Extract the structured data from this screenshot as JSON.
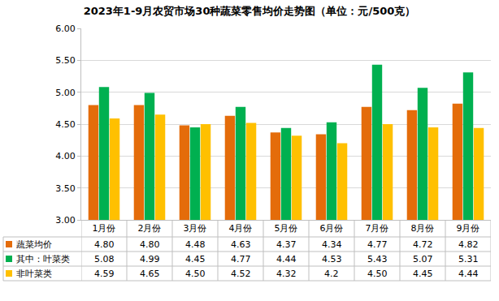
{
  "chart_data": {
    "type": "bar",
    "title": "2023年1-9月农贸市场30种蔬菜零售均价走势图（单位：元/500克）",
    "categories": [
      "1月份",
      "2月份",
      "3月份",
      "4月份",
      "5月份",
      "6月份",
      "7月份",
      "8月份",
      "9月份"
    ],
    "series": [
      {
        "name": "蔬菜均价",
        "color": "#E46C0A",
        "values": [
          4.8,
          4.8,
          4.48,
          4.63,
          4.37,
          4.34,
          4.77,
          4.72,
          4.82
        ],
        "value_labels": [
          "4.80",
          "4.80",
          "4.48",
          "4.63",
          "4.37",
          "4.34",
          "4.77",
          "4.72",
          "4.82"
        ]
      },
      {
        "name": "其中：叶菜类",
        "color": "#00B050",
        "values": [
          5.08,
          4.99,
          4.45,
          4.77,
          4.44,
          4.53,
          5.43,
          5.07,
          5.31
        ],
        "value_labels": [
          "5.08",
          "4.99",
          "4.45",
          "4.77",
          "4.44",
          "4.53",
          "5.43",
          "5.07",
          "5.31"
        ]
      },
      {
        "name": "非叶菜类",
        "color": "#FFC000",
        "values": [
          4.59,
          4.65,
          4.5,
          4.52,
          4.32,
          4.2,
          4.5,
          4.45,
          4.44
        ],
        "value_labels": [
          "4.59",
          "4.65",
          "4.50",
          "4.52",
          "4.32",
          "4.2",
          "4.50",
          "4.45",
          "4.44"
        ]
      }
    ],
    "ylim": [
      3,
      6
    ],
    "yticks": [
      {
        "value": 3,
        "label": "3.00"
      },
      {
        "value": 3.5,
        "label": "3.50"
      },
      {
        "value": 4,
        "label": "4.00"
      },
      {
        "value": 4.5,
        "label": "4.50"
      },
      {
        "value": 5,
        "label": "5.00"
      },
      {
        "value": 5.5,
        "label": "5.50"
      },
      {
        "value": 6,
        "label": "6.00"
      }
    ],
    "grid": true
  }
}
